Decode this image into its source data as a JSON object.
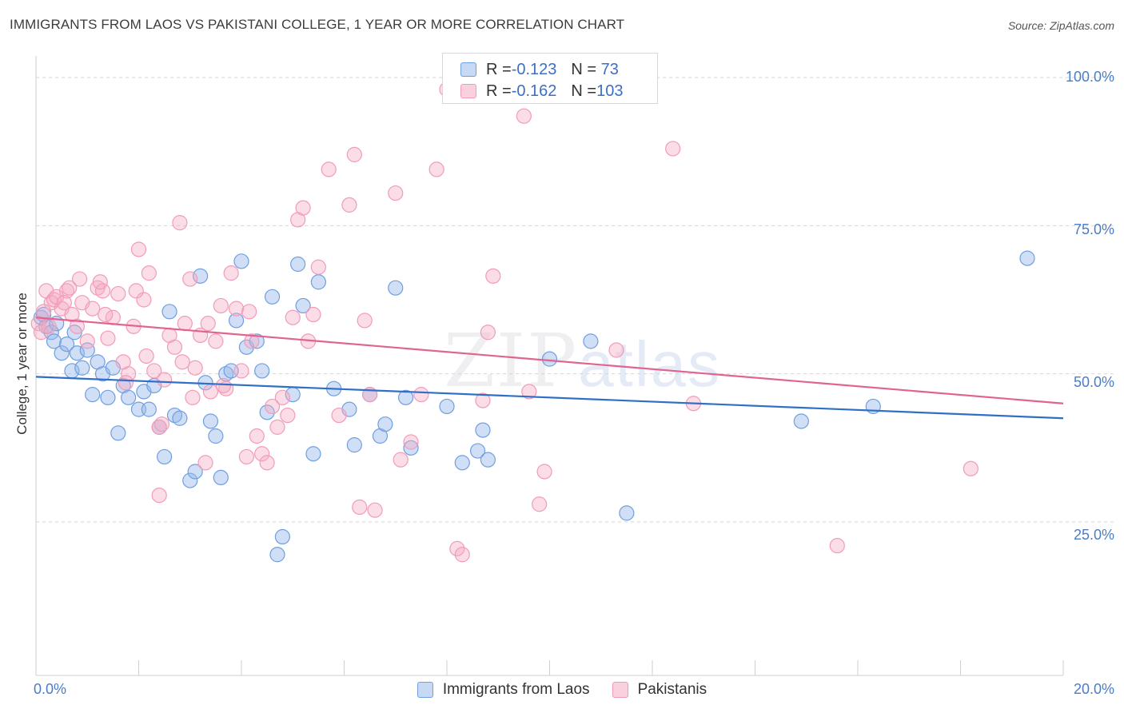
{
  "header": {
    "title": "IMMIGRANTS FROM LAOS VS PAKISTANI COLLEGE, 1 YEAR OR MORE CORRELATION CHART",
    "source": "Source: ZipAtlas.com"
  },
  "watermark": {
    "zip": "ZIP",
    "atlas": "atlas"
  },
  "legend_top": [
    {
      "r_label": "R = ",
      "r_value": "-0.123",
      "n_label": "N = ",
      "n_value": " 73"
    },
    {
      "r_label": "R = ",
      "r_value": "-0.162",
      "n_label": "N = ",
      "n_value": "103"
    }
  ],
  "chart_data": {
    "type": "scatter",
    "title": "IMMIGRANTS FROM LAOS VS PAKISTANI COLLEGE, 1 YEAR OR MORE CORRELATION CHART",
    "xlabel": "",
    "ylabel": "College, 1 year or more",
    "xlim": [
      0,
      20
    ],
    "ylim": [
      0,
      105
    ],
    "x_tick_labels": [
      "0.0%",
      "20.0%"
    ],
    "y_tick_labels": [
      "100.0%",
      "75.0%",
      "50.0%",
      "25.0%"
    ],
    "y_ticks": [
      100,
      75,
      50,
      25
    ],
    "grid": "horizontal dashed",
    "legend_position": "bottom",
    "colors": {
      "laos": "#6f9fe0",
      "pakistani": "#f29bb8",
      "laos_line": "#2f6fc8",
      "pakistani_line": "#e0648f",
      "tick_text": "#4a7cc7"
    },
    "series": [
      {
        "name": "Immigrants from Laos",
        "trend": [
          [
            0,
            49.5
          ],
          [
            20,
            42.5
          ]
        ],
        "points": [
          [
            0.1,
            59.5
          ],
          [
            0.2,
            58
          ],
          [
            0.3,
            57
          ],
          [
            0.35,
            55.5
          ],
          [
            0.5,
            53.5
          ],
          [
            0.6,
            55
          ],
          [
            0.7,
            50.5
          ],
          [
            0.8,
            53.5
          ],
          [
            0.9,
            51
          ],
          [
            1.0,
            54
          ],
          [
            1.2,
            52
          ],
          [
            1.3,
            50
          ],
          [
            1.4,
            46
          ],
          [
            1.5,
            51
          ],
          [
            1.7,
            48
          ],
          [
            1.8,
            46
          ],
          [
            2.0,
            44
          ],
          [
            2.1,
            47
          ],
          [
            2.2,
            44
          ],
          [
            2.4,
            41
          ],
          [
            2.5,
            36
          ],
          [
            2.6,
            60.5
          ],
          [
            2.7,
            43
          ],
          [
            2.8,
            42.5
          ],
          [
            3.0,
            32
          ],
          [
            3.1,
            33.5
          ],
          [
            3.2,
            66.5
          ],
          [
            3.3,
            48.5
          ],
          [
            3.4,
            42
          ],
          [
            3.5,
            39.5
          ],
          [
            3.6,
            32.5
          ],
          [
            3.7,
            50
          ],
          [
            3.8,
            50.5
          ],
          [
            3.9,
            59
          ],
          [
            4.0,
            69
          ],
          [
            4.1,
            54.5
          ],
          [
            4.3,
            55.5
          ],
          [
            4.4,
            50.5
          ],
          [
            4.5,
            43.5
          ],
          [
            4.6,
            63
          ],
          [
            4.7,
            19.5
          ],
          [
            4.8,
            22.5
          ],
          [
            5.0,
            46.5
          ],
          [
            5.1,
            68.5
          ],
          [
            5.2,
            61.5
          ],
          [
            5.4,
            36.5
          ],
          [
            5.5,
            65.5
          ],
          [
            5.8,
            47.5
          ],
          [
            6.1,
            44
          ],
          [
            6.2,
            38
          ],
          [
            6.5,
            46.5
          ],
          [
            6.7,
            39.5
          ],
          [
            6.8,
            41.5
          ],
          [
            7.0,
            64.5
          ],
          [
            7.2,
            46
          ],
          [
            7.3,
            37.5
          ],
          [
            8.0,
            44.5
          ],
          [
            8.3,
            35
          ],
          [
            8.6,
            37
          ],
          [
            8.7,
            40.5
          ],
          [
            8.8,
            35.5
          ],
          [
            10.0,
            52.5
          ],
          [
            10.8,
            55.5
          ],
          [
            11.5,
            26.5
          ],
          [
            14.9,
            42
          ],
          [
            16.3,
            44.5
          ],
          [
            19.3,
            69.5
          ],
          [
            0.15,
            60
          ],
          [
            0.4,
            58.5
          ],
          [
            1.1,
            46.5
          ],
          [
            2.3,
            48
          ],
          [
            1.6,
            40
          ],
          [
            0.75,
            57
          ]
        ]
      },
      {
        "name": "Pakistanis",
        "trend": [
          [
            0,
            59.5
          ],
          [
            20,
            45
          ]
        ],
        "points": [
          [
            0.05,
            58.5
          ],
          [
            0.1,
            57
          ],
          [
            0.2,
            64
          ],
          [
            0.3,
            62
          ],
          [
            0.35,
            62.5
          ],
          [
            0.5,
            61
          ],
          [
            0.6,
            64
          ],
          [
            0.7,
            60
          ],
          [
            0.8,
            58
          ],
          [
            0.9,
            62
          ],
          [
            1.0,
            55.5
          ],
          [
            1.1,
            61
          ],
          [
            1.2,
            64.5
          ],
          [
            1.3,
            64
          ],
          [
            1.4,
            56
          ],
          [
            1.5,
            59.5
          ],
          [
            1.6,
            63.5
          ],
          [
            1.7,
            52
          ],
          [
            1.8,
            50
          ],
          [
            1.9,
            58
          ],
          [
            2.0,
            71
          ],
          [
            2.1,
            62.5
          ],
          [
            2.2,
            67
          ],
          [
            2.3,
            50.5
          ],
          [
            2.4,
            41
          ],
          [
            2.5,
            49
          ],
          [
            2.6,
            56.5
          ],
          [
            2.7,
            54.5
          ],
          [
            2.8,
            75.5
          ],
          [
            2.9,
            58.5
          ],
          [
            3.0,
            66
          ],
          [
            3.1,
            51
          ],
          [
            3.2,
            56.5
          ],
          [
            3.3,
            35
          ],
          [
            3.4,
            47
          ],
          [
            3.5,
            55.5
          ],
          [
            3.6,
            61.5
          ],
          [
            3.7,
            47.5
          ],
          [
            3.8,
            67
          ],
          [
            3.9,
            61
          ],
          [
            4.0,
            50.5
          ],
          [
            4.1,
            36
          ],
          [
            4.2,
            55.5
          ],
          [
            4.3,
            39.5
          ],
          [
            4.4,
            36.5
          ],
          [
            4.5,
            35
          ],
          [
            4.6,
            44.5
          ],
          [
            4.7,
            41
          ],
          [
            4.8,
            46
          ],
          [
            4.9,
            43
          ],
          [
            5.0,
            59.5
          ],
          [
            5.1,
            76
          ],
          [
            5.2,
            78
          ],
          [
            5.3,
            55.5
          ],
          [
            5.5,
            68
          ],
          [
            5.7,
            84.5
          ],
          [
            5.9,
            43
          ],
          [
            6.1,
            78.5
          ],
          [
            6.2,
            87
          ],
          [
            6.3,
            27.5
          ],
          [
            6.4,
            59
          ],
          [
            6.5,
            46.5
          ],
          [
            6.6,
            27
          ],
          [
            7.0,
            80.5
          ],
          [
            7.1,
            35.5
          ],
          [
            7.3,
            38.5
          ],
          [
            7.5,
            46.5
          ],
          [
            7.8,
            84.5
          ],
          [
            8.0,
            98
          ],
          [
            8.2,
            20.5
          ],
          [
            8.3,
            19.5
          ],
          [
            8.7,
            45.5
          ],
          [
            8.8,
            57
          ],
          [
            8.9,
            66.5
          ],
          [
            9.5,
            93.5
          ],
          [
            9.6,
            47
          ],
          [
            9.8,
            28
          ],
          [
            9.9,
            33.5
          ],
          [
            11.1,
            98
          ],
          [
            11.3,
            54
          ],
          [
            12.4,
            88
          ],
          [
            12.8,
            45
          ],
          [
            15.6,
            21
          ],
          [
            18.2,
            34
          ],
          [
            2.4,
            29.5
          ],
          [
            0.15,
            60.5
          ],
          [
            0.4,
            63
          ],
          [
            0.55,
            62
          ],
          [
            1.25,
            65.5
          ],
          [
            3.35,
            58.5
          ],
          [
            2.45,
            41.5
          ],
          [
            1.75,
            48.5
          ],
          [
            0.25,
            58
          ],
          [
            0.65,
            64.5
          ],
          [
            1.95,
            64
          ],
          [
            3.65,
            48
          ],
          [
            2.85,
            52
          ],
          [
            5.4,
            60
          ],
          [
            4.15,
            60.5
          ],
          [
            0.85,
            66
          ],
          [
            1.35,
            60
          ],
          [
            2.15,
            53
          ],
          [
            3.05,
            46
          ]
        ]
      }
    ]
  },
  "legend_bottom": [
    {
      "label": "Immigrants from Laos"
    },
    {
      "label": "Pakistanis"
    }
  ]
}
